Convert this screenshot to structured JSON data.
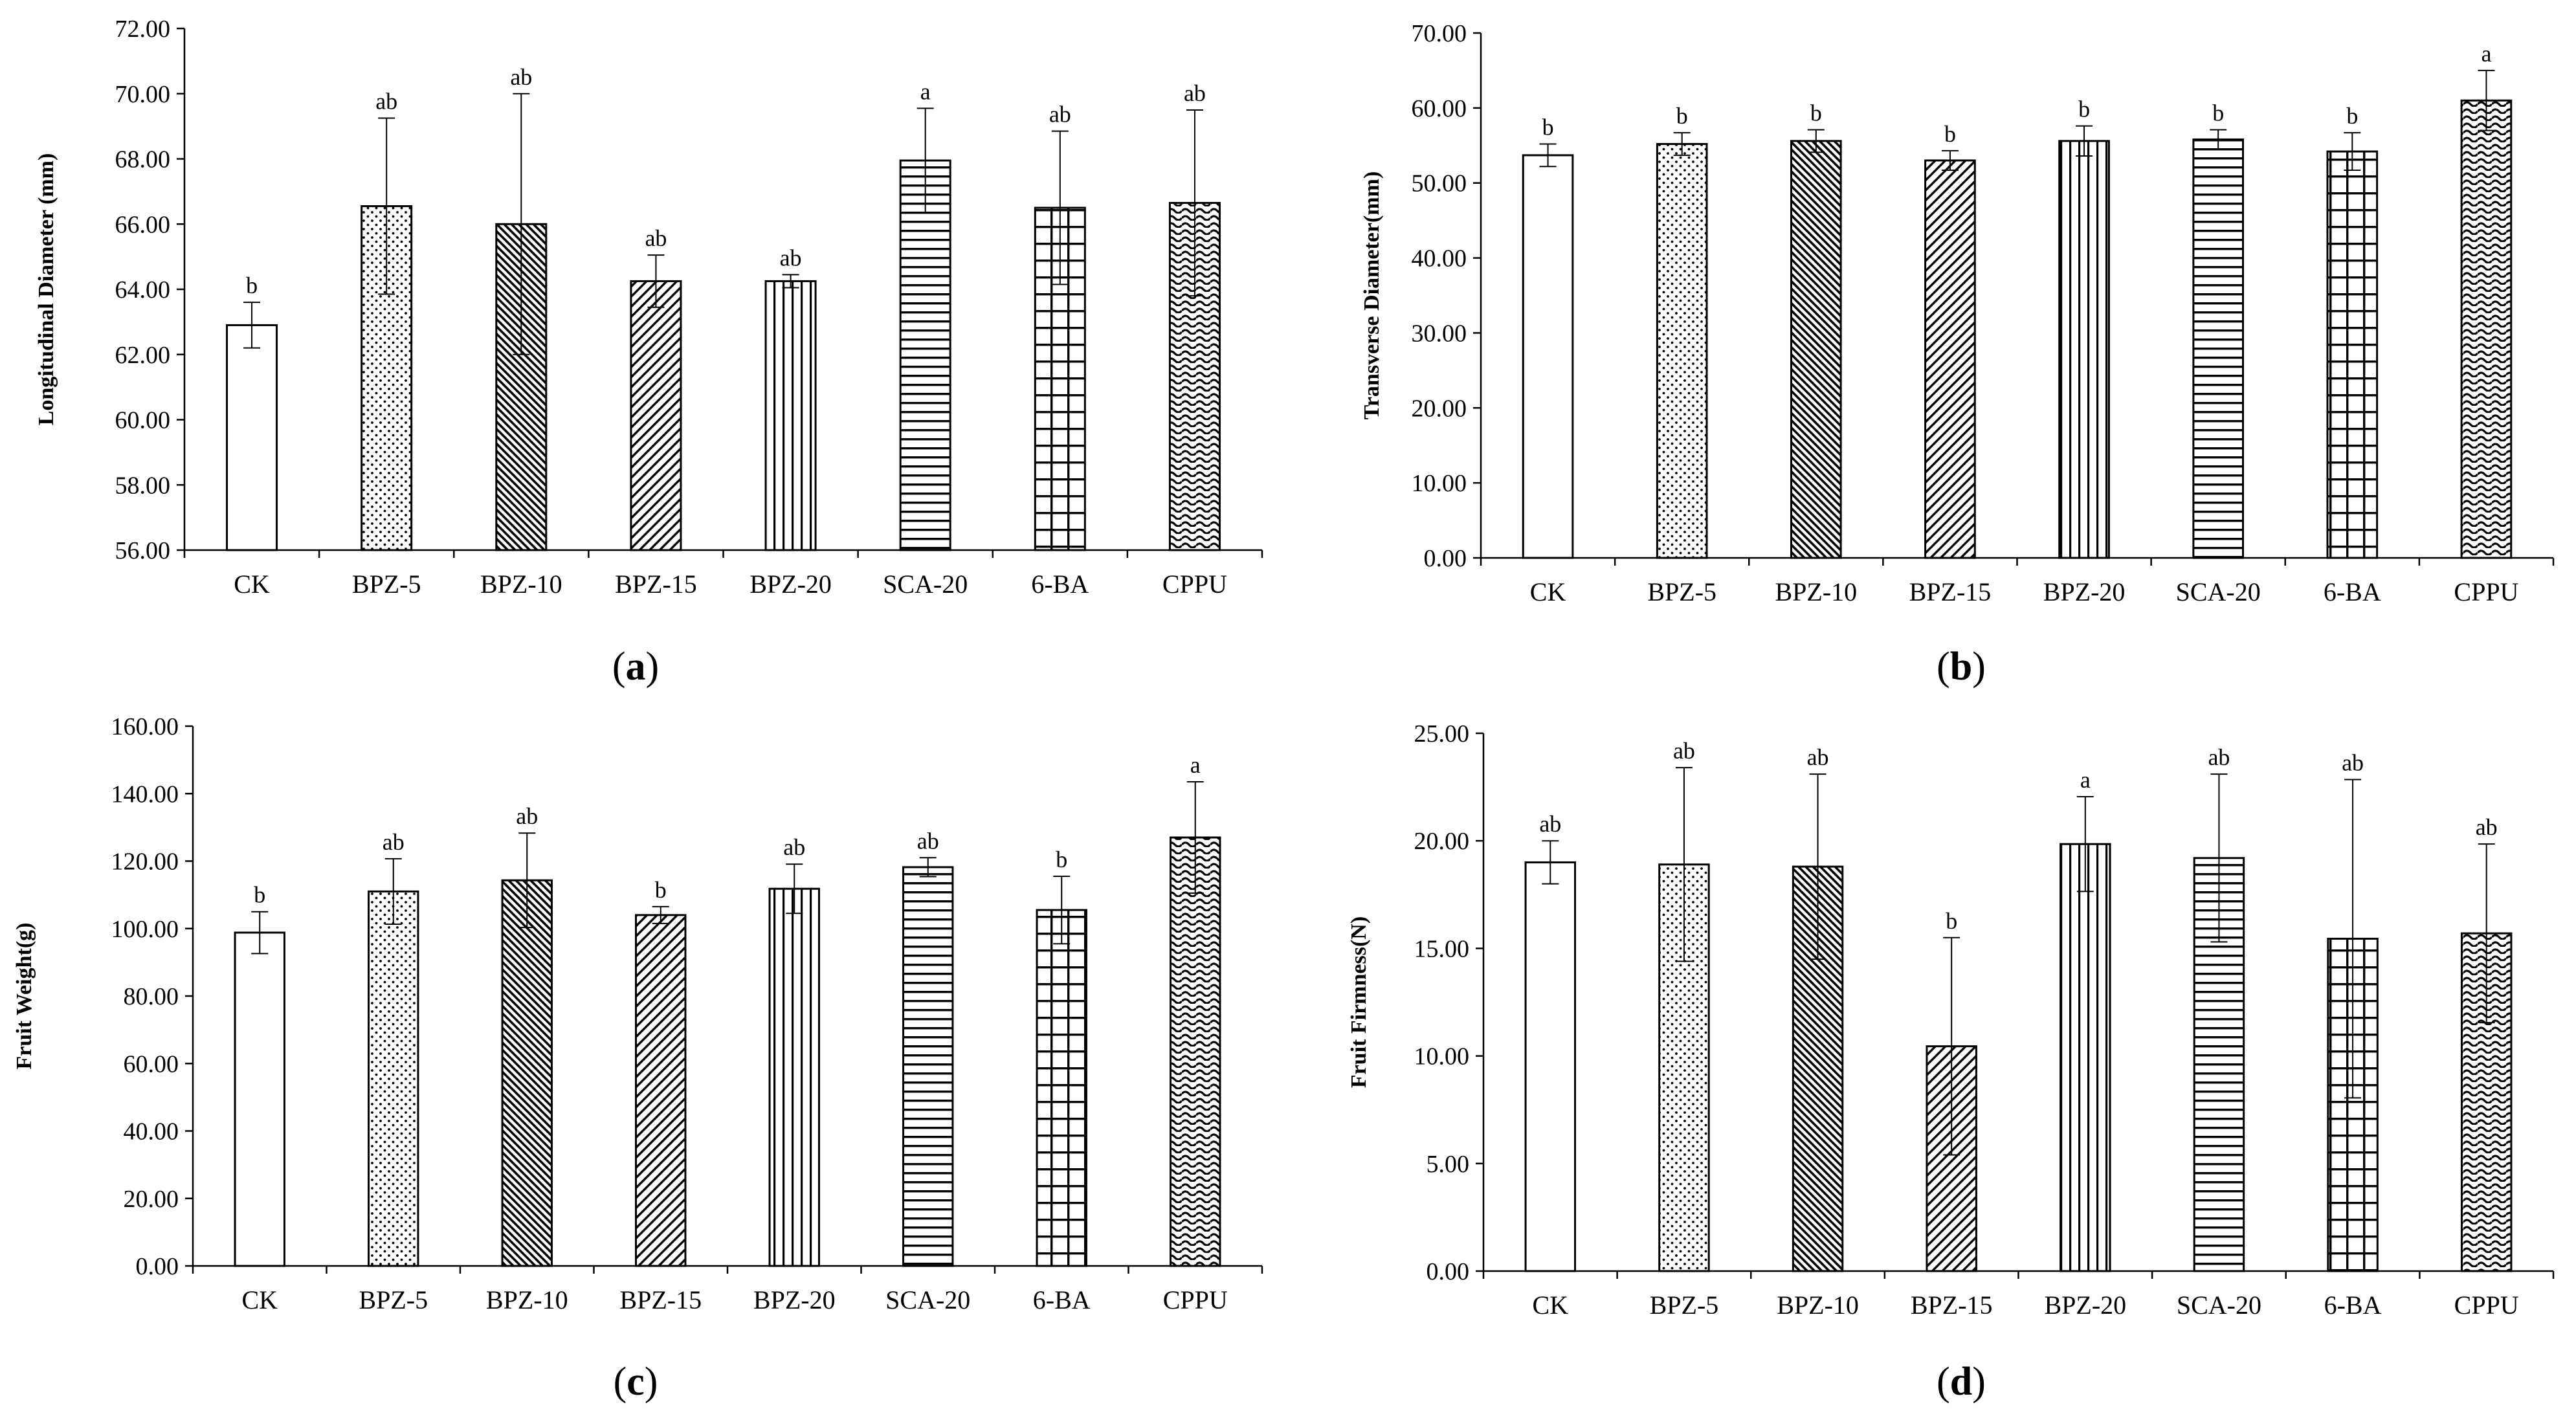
{
  "chart_data": [
    {
      "id": "a",
      "type": "bar",
      "caption_open": "(",
      "caption_letter": "a",
      "caption_close": ")",
      "ylabel": "Longitudinal Diameter (mm)",
      "ylim": [
        56,
        72
      ],
      "ytick_step": 2,
      "categories": [
        "CK",
        "BPZ-5",
        "BPZ-10",
        "BPZ-15",
        "BPZ-20",
        "SCA-20",
        "6-BA",
        "CPPU"
      ],
      "values": [
        62.9,
        66.55,
        66.0,
        64.25,
        64.25,
        67.95,
        66.5,
        66.65
      ],
      "errors": [
        0.7,
        2.7,
        4.0,
        0.8,
        0.2,
        1.6,
        2.35,
        2.85
      ],
      "letters": [
        "b",
        "ab",
        "ab",
        "ab",
        "ab",
        "a",
        "ab",
        "ab"
      ],
      "patterns": [
        "none",
        "dots",
        "dense-diag",
        "diag",
        "vert",
        "horiz",
        "grid",
        "wave"
      ]
    },
    {
      "id": "b",
      "type": "bar",
      "caption_open": "(",
      "caption_letter": "b",
      "caption_close": ")",
      "ylabel": "Transverse Diameter(mm)",
      "ylim": [
        0,
        70
      ],
      "ytick_step": 10,
      "categories": [
        "CK",
        "BPZ-5",
        "BPZ-10",
        "BPZ-15",
        "BPZ-20",
        "SCA-20",
        "6-BA",
        "CPPU"
      ],
      "values": [
        53.7,
        55.2,
        55.6,
        53.0,
        55.6,
        55.8,
        54.2,
        61.0
      ],
      "errors": [
        1.5,
        1.5,
        1.5,
        1.3,
        2.0,
        1.3,
        2.5,
        4.0
      ],
      "letters": [
        "b",
        "b",
        "b",
        "b",
        "b",
        "b",
        "b",
        "a"
      ],
      "patterns": [
        "none",
        "dots",
        "dense-diag",
        "diag",
        "vert",
        "horiz",
        "grid",
        "wave"
      ]
    },
    {
      "id": "c",
      "type": "bar",
      "caption_open": "(",
      "caption_letter": "c",
      "caption_close": ")",
      "ylabel": "Fruit Weight(g)",
      "ylim": [
        0,
        160
      ],
      "ytick_step": 20,
      "categories": [
        "CK",
        "BPZ-5",
        "BPZ-10",
        "BPZ-15",
        "BPZ-20",
        "SCA-20",
        "6-BA",
        "CPPU"
      ],
      "values": [
        98.8,
        111.0,
        114.3,
        104.0,
        111.8,
        118.2,
        105.5,
        127.0
      ],
      "errors": [
        6.2,
        9.7,
        14.0,
        2.5,
        7.3,
        2.8,
        10.0,
        16.5
      ],
      "letters": [
        "b",
        "ab",
        "ab",
        "b",
        "ab",
        "ab",
        "b",
        "a"
      ],
      "patterns": [
        "none",
        "dots",
        "dense-diag",
        "diag",
        "vert",
        "horiz",
        "grid",
        "wave"
      ]
    },
    {
      "id": "d",
      "type": "bar",
      "caption_open": "(",
      "caption_letter": "d",
      "caption_close": ")",
      "ylabel": "Fruit Firmness(N)",
      "ylim": [
        0,
        25
      ],
      "ytick_step": 5,
      "categories": [
        "CK",
        "BPZ-5",
        "BPZ-10",
        "BPZ-15",
        "BPZ-20",
        "SCA-20",
        "6-BA",
        "CPPU"
      ],
      "values": [
        19.0,
        18.9,
        18.8,
        10.45,
        19.85,
        19.2,
        15.45,
        15.7
      ],
      "errors": [
        1.0,
        4.5,
        4.3,
        5.05,
        2.2,
        3.9,
        7.4,
        4.15
      ],
      "letters": [
        "ab",
        "ab",
        "ab",
        "b",
        "a",
        "ab",
        "ab",
        "ab"
      ],
      "patterns": [
        "none",
        "dots",
        "dense-diag",
        "diag",
        "vert",
        "horiz",
        "grid",
        "wave"
      ]
    }
  ]
}
